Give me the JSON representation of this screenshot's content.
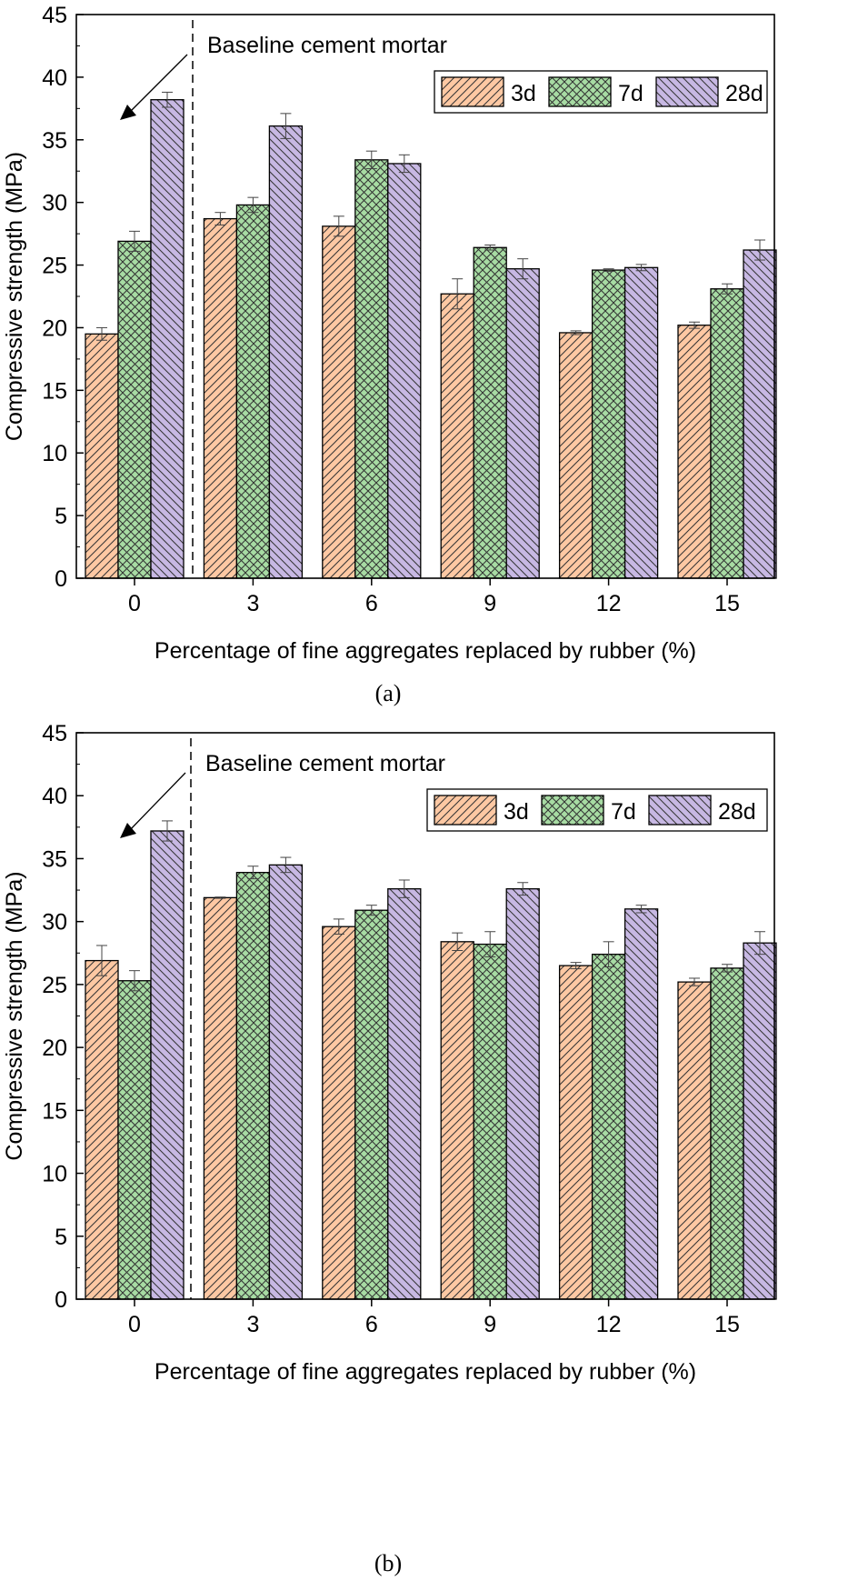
{
  "colors": {
    "s3d": "#fdc8a3",
    "s7d": "#a7dba3",
    "s28d": "#c7b8e3",
    "hatch": "#333333"
  },
  "chart_data": [
    {
      "type": "bar",
      "caption": "(a)",
      "categories": [
        "0",
        "3",
        "6",
        "9",
        "12",
        "15"
      ],
      "xlabel": "Percentage of fine aggregates replaced by rubber (%)",
      "ylabel": "Compressive strength (MPa)",
      "ylim": [
        0,
        45
      ],
      "yticks": [
        0,
        5,
        10,
        15,
        20,
        25,
        30,
        35,
        40,
        45
      ],
      "annotation": "Baseline cement mortar",
      "legend_position": "top-right",
      "series": [
        {
          "name": "3d",
          "values": [
            19.5,
            28.7,
            28.1,
            22.7,
            19.6,
            20.2
          ],
          "errors": [
            0.5,
            0.5,
            0.8,
            1.2,
            0.15,
            0.25
          ]
        },
        {
          "name": "7d",
          "values": [
            26.9,
            29.8,
            33.4,
            26.4,
            24.6,
            23.1
          ],
          "errors": [
            0.8,
            0.6,
            0.7,
            0.2,
            0.1,
            0.4
          ]
        },
        {
          "name": "28d",
          "values": [
            38.2,
            36.1,
            33.1,
            24.7,
            24.8,
            26.2
          ],
          "errors": [
            0.6,
            1.0,
            0.7,
            0.8,
            0.25,
            0.8
          ]
        }
      ]
    },
    {
      "type": "bar",
      "caption": "(b)",
      "categories": [
        "0",
        "3",
        "6",
        "9",
        "12",
        "15"
      ],
      "xlabel": "Percentage of fine aggregates replaced by rubber (%)",
      "ylabel": "Compressive strength (MPa)",
      "ylim": [
        0,
        45
      ],
      "yticks": [
        0,
        5,
        10,
        15,
        20,
        25,
        30,
        35,
        40,
        45
      ],
      "annotation": "Baseline cement mortar",
      "legend_position": "top-right",
      "series": [
        {
          "name": "3d",
          "values": [
            26.9,
            31.9,
            29.6,
            28.4,
            26.5,
            25.2
          ],
          "errors": [
            1.2,
            0.05,
            0.6,
            0.7,
            0.25,
            0.3
          ]
        },
        {
          "name": "7d",
          "values": [
            25.3,
            33.9,
            30.9,
            28.2,
            27.4,
            26.3
          ],
          "errors": [
            0.8,
            0.5,
            0.4,
            1.0,
            1.0,
            0.3
          ]
        },
        {
          "name": "28d",
          "values": [
            37.2,
            34.5,
            32.6,
            32.6,
            31.0,
            28.3
          ],
          "errors": [
            0.8,
            0.6,
            0.7,
            0.5,
            0.3,
            0.9
          ]
        }
      ]
    }
  ]
}
